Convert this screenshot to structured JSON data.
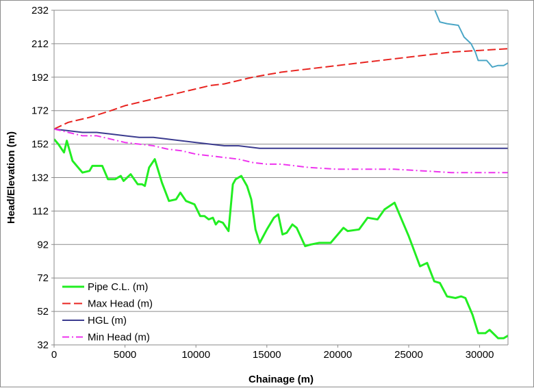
{
  "chart_data": {
    "type": "line",
    "title": "",
    "xlabel": "Chainage (m)",
    "ylabel": "Head/Elevation (m)",
    "xlim": [
      0,
      32000
    ],
    "ylim": [
      32,
      232
    ],
    "x_ticks": [
      0,
      5000,
      10000,
      15000,
      20000,
      25000,
      30000
    ],
    "x_tick_labels": [
      "0",
      "5000",
      "10000",
      "15000",
      "20000",
      "25000",
      "30000"
    ],
    "y_ticks": [
      32,
      52,
      72,
      92,
      112,
      132,
      152,
      172,
      192,
      212,
      232
    ],
    "y_tick_labels": [
      "32",
      "52",
      "72",
      "92",
      "112",
      "132",
      "152",
      "172",
      "192",
      "212",
      "232"
    ],
    "grid": "horizontal",
    "legend_position": "bottom-left",
    "series": [
      {
        "name": "Pipe C.L. (m)",
        "color": "#22ee22",
        "dash": "solid",
        "x": [
          0,
          300,
          700,
          900,
          1300,
          2000,
          2500,
          2700,
          3400,
          3800,
          4300,
          4700,
          4900,
          5400,
          5900,
          6200,
          6400,
          6700,
          7100,
          7600,
          8100,
          8600,
          8900,
          9300,
          9900,
          10300,
          10600,
          10900,
          11200,
          11400,
          11600,
          11900,
          12300,
          12600,
          12800,
          13200,
          13600,
          13900,
          14200,
          14500,
          15000,
          15500,
          15800,
          16100,
          16400,
          16800,
          17100,
          17700,
          18100,
          18700,
          19500,
          20400,
          20700,
          21500,
          22100,
          22800,
          23300,
          24000,
          24400,
          25000,
          25800,
          26300,
          26800,
          27200,
          27700,
          28300,
          28700,
          29000,
          29500,
          29900,
          30400,
          30700,
          31300,
          31700,
          32100
        ],
        "values": [
          155,
          152,
          147,
          154,
          142,
          135,
          136,
          139,
          139,
          131,
          131,
          133,
          130,
          134,
          128,
          128,
          127,
          138,
          143,
          129,
          118,
          119,
          123,
          118,
          116,
          109,
          109,
          107,
          108,
          104,
          106,
          105,
          100,
          128,
          131,
          133,
          127,
          119,
          101,
          93,
          101,
          108,
          110,
          98,
          99,
          104,
          102,
          91,
          92,
          93,
          93,
          102,
          100,
          101,
          108,
          107,
          113,
          117,
          109,
          97,
          79,
          81,
          70,
          69,
          61,
          60,
          61,
          60,
          50,
          39,
          39,
          41,
          36,
          36,
          38
        ]
      },
      {
        "name": "Max Head (m)",
        "color": "#e8231f",
        "dash": "long-dash",
        "x": [
          0,
          1000,
          2500,
          4000,
          5000,
          6000,
          7000,
          9000,
          11000,
          12000,
          14000,
          16000,
          18000,
          20000,
          22000,
          24000,
          26000,
          28000,
          30000,
          32000
        ],
        "values": [
          161,
          165,
          168,
          172,
          175,
          177,
          179,
          183,
          187,
          188,
          192,
          195,
          197,
          199,
          201,
          203,
          205,
          207,
          208,
          209
        ]
      },
      {
        "name": "HGL (m)",
        "color": "#3b3b8f",
        "dash": "solid",
        "x": [
          0,
          1000,
          2000,
          3000,
          4000,
          5000,
          6000,
          7000,
          8000,
          9000,
          10000,
          11000,
          12000,
          13000,
          14000,
          14500,
          16000,
          20000,
          25000,
          32000
        ],
        "values": [
          161,
          160,
          159,
          159,
          158,
          157,
          156,
          156,
          155,
          154,
          153,
          152,
          151,
          151,
          150,
          149.5,
          149.5,
          149.5,
          149.5,
          149.5
        ]
      },
      {
        "name": "Min Head (m)",
        "color": "#ee33ee",
        "dash": "dash-dot",
        "x": [
          0,
          1000,
          2000,
          3000,
          4000,
          5000,
          6000,
          7000,
          8000,
          9000,
          10000,
          11000,
          12000,
          13000,
          14000,
          15000,
          16000,
          18000,
          20000,
          22000,
          24000,
          26000,
          28000,
          30000,
          32000
        ],
        "values": [
          161,
          159,
          157,
          157,
          155,
          153,
          152,
          151,
          149,
          148,
          146,
          145,
          144,
          143,
          141,
          140,
          140,
          138,
          137,
          137,
          137,
          136,
          135,
          135,
          135
        ]
      },
      {
        "name": "",
        "color": "#4aa6c6",
        "dash": "solid",
        "x": [
          26800,
          27200,
          27700,
          28500,
          28900,
          29400,
          29700,
          29900,
          30500,
          30900,
          31300,
          31700,
          32100
        ],
        "values": [
          233,
          225,
          224,
          223,
          216,
          212,
          207,
          202,
          202,
          198,
          199,
          199,
          201
        ]
      }
    ]
  }
}
